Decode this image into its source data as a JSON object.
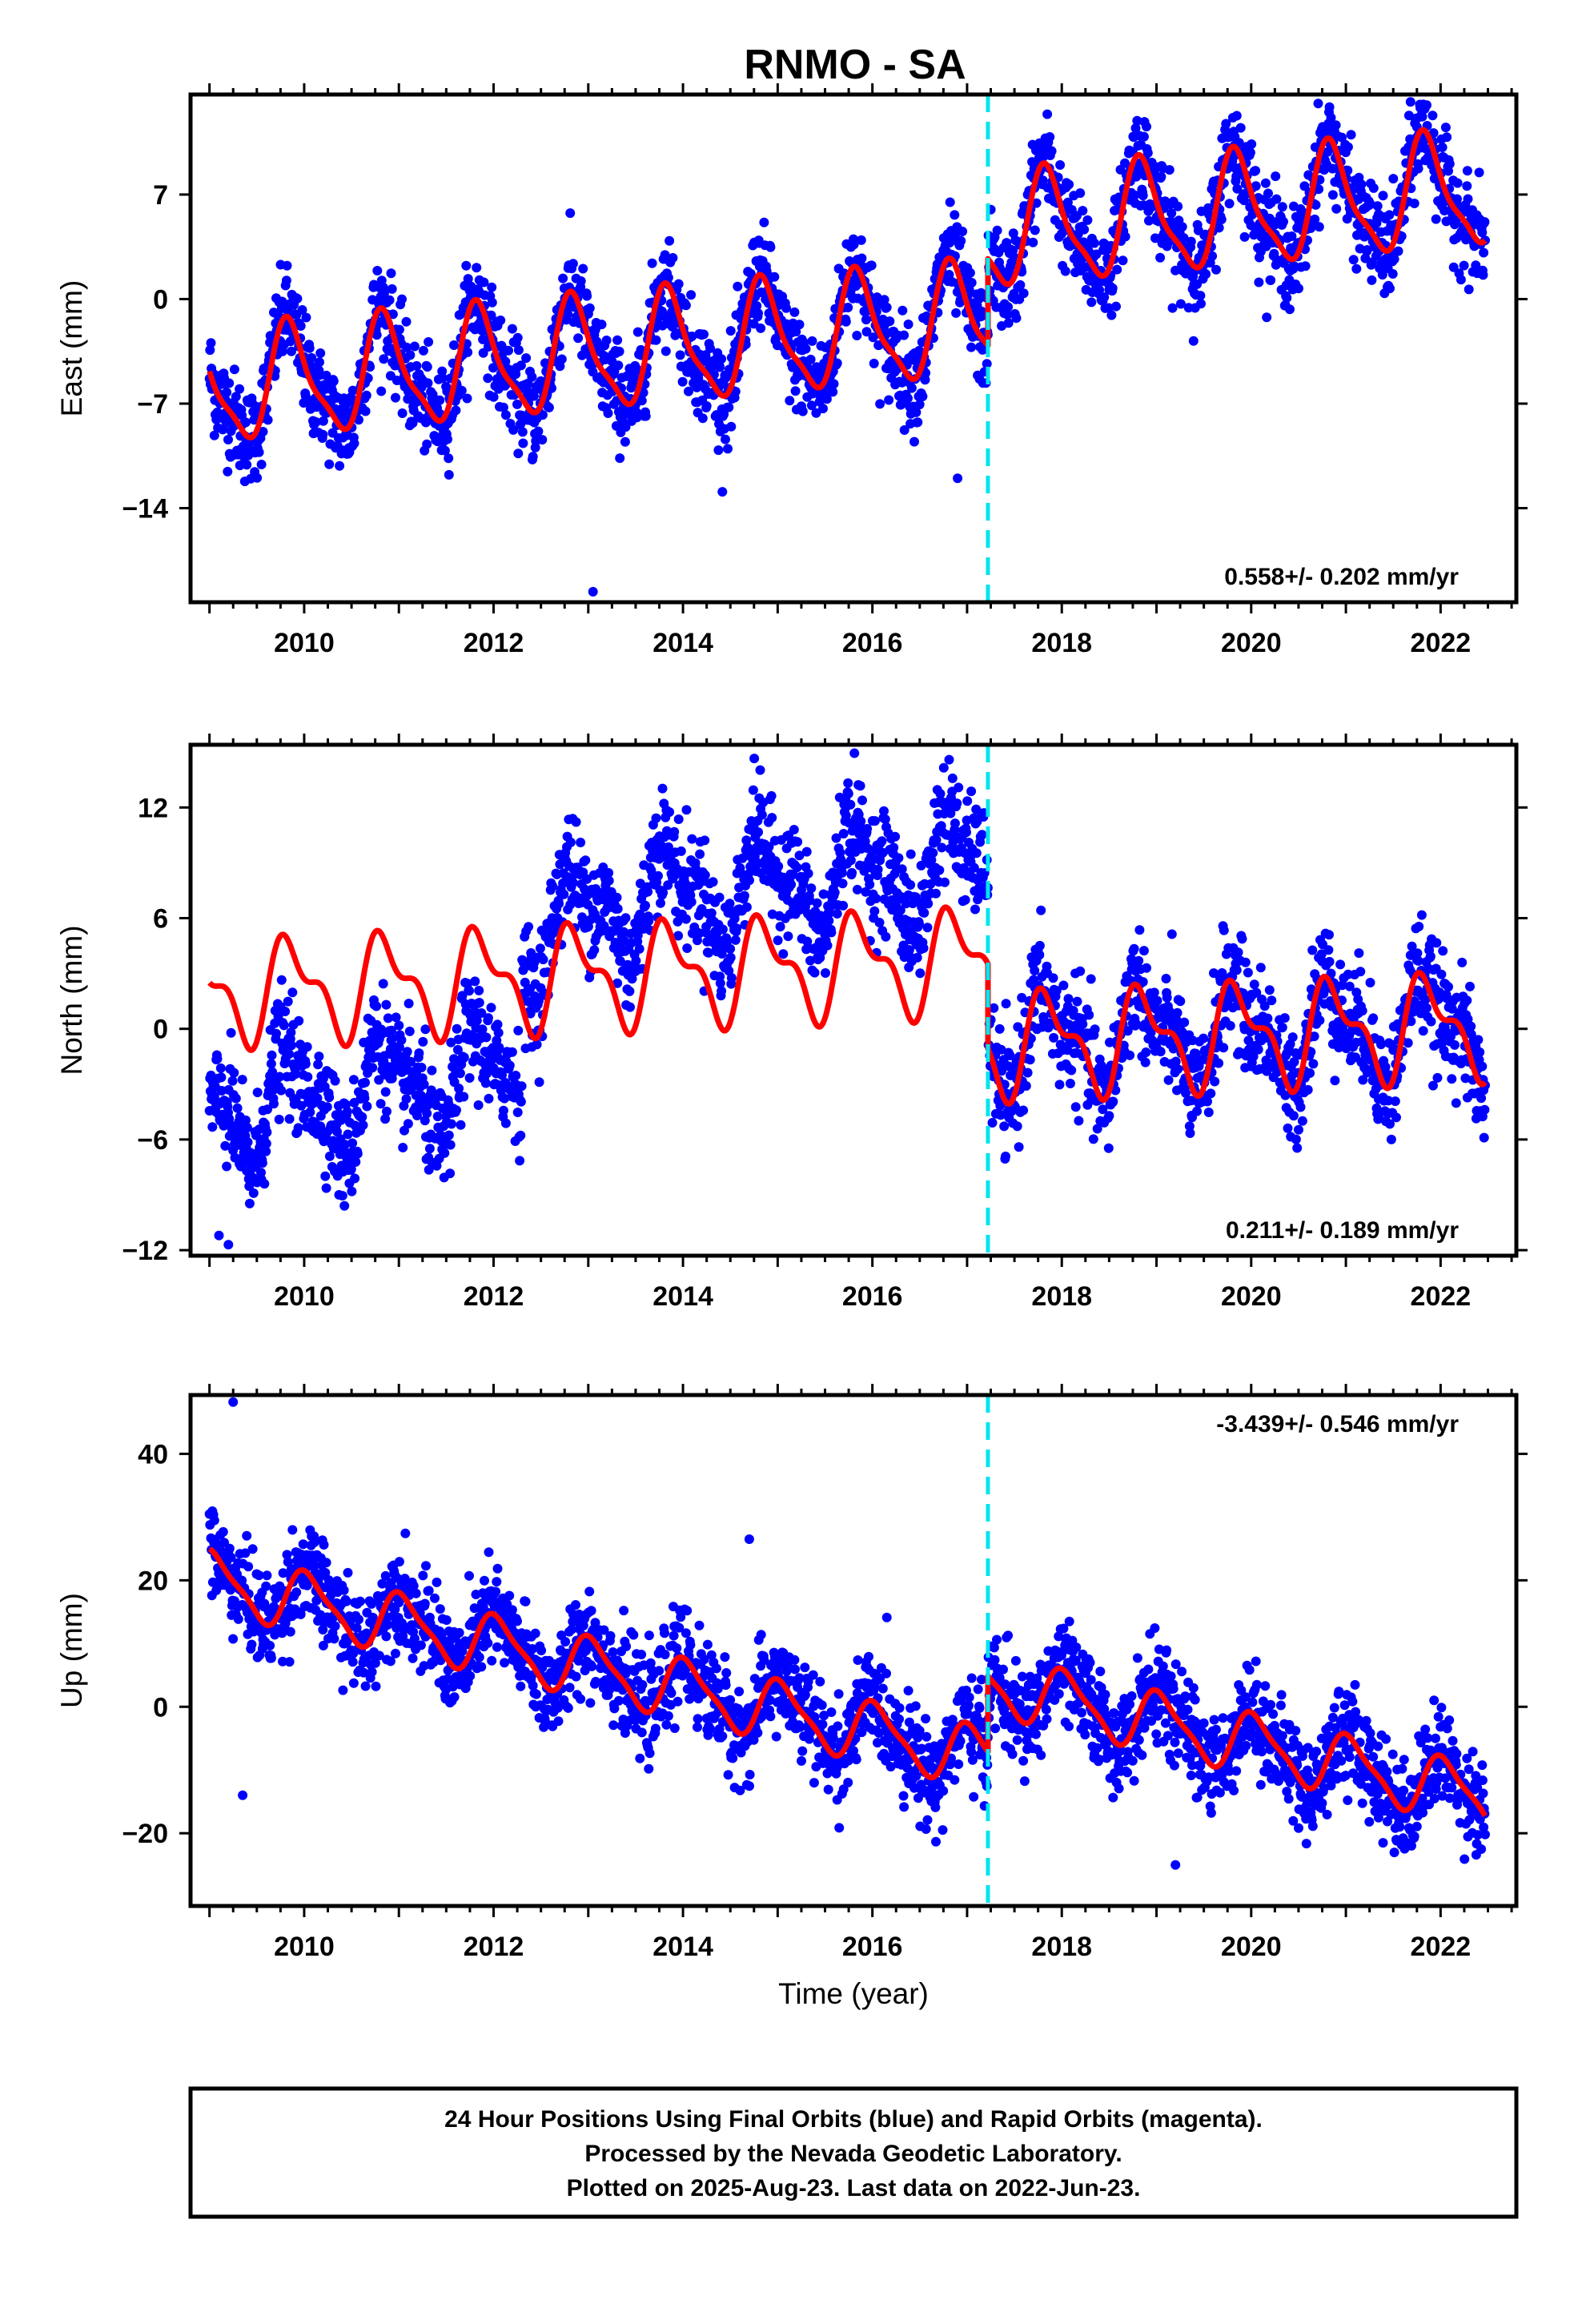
{
  "title": "RNMO - SA",
  "colors": {
    "points": "#0000ff",
    "model": "#ff0000",
    "offset_line": "#00e5ee",
    "frame": "#000000"
  },
  "offset_epoch": 2017.22,
  "x_range": [
    2008.8,
    2022.8
  ],
  "chart_data": [
    {
      "type": "scatter",
      "panel": "east",
      "ylabel": "East (mm)",
      "xlabel": "",
      "xlim": [
        2008.8,
        2022.8
      ],
      "ylim": [
        -20.3,
        13.7
      ],
      "yticks": [
        7,
        0,
        -7,
        -14
      ],
      "ytick_labels": [
        "7",
        "0",
        "-7",
        "-14"
      ],
      "xticks": [
        2010,
        2012,
        2014,
        2016,
        2018,
        2020,
        2022
      ],
      "xtick_labels": [
        "2010",
        "2012",
        "2014",
        "2016",
        "2018",
        "2020",
        "2022"
      ],
      "rate_text": "0.558+/- 0.202 mm/yr",
      "data_span": [
        2009.0,
        2022.47
      ],
      "model": {
        "rate": 0.558,
        "intercept_2009": -6.0,
        "offset_at_step": 5.8,
        "annual_amp": 3.6,
        "annual_phase": 0.6,
        "semiannual_amp": 1.0,
        "semiannual_phase": 0.15
      },
      "scatter_sigma": 1.6,
      "outliers": [
        [
          2013.05,
          -19.6
        ],
        [
          2016.9,
          -12.0
        ]
      ]
    },
    {
      "type": "scatter",
      "panel": "north",
      "ylabel": "North (mm)",
      "xlabel": "",
      "xlim": [
        2008.8,
        2022.8
      ],
      "ylim": [
        -12.3,
        15.4
      ],
      "yticks": [
        12,
        6,
        0,
        -6,
        -12
      ],
      "ytick_labels": [
        "12",
        "6",
        "0",
        "-6",
        "-12"
      ],
      "xticks": [
        2010,
        2012,
        2014,
        2016,
        2018,
        2020,
        2022
      ],
      "xtick_labels": [
        "2010",
        "2012",
        "2014",
        "2016",
        "2018",
        "2020",
        "2022"
      ],
      "rate_text": "0.211+/- 0.189 mm/yr",
      "data_span": [
        2009.0,
        2022.47
      ],
      "model": {
        "rate": 0.211,
        "intercept_2009": 2.0,
        "offset_at_step": -4.6,
        "annual_amp": 2.4,
        "annual_phase": 0.62,
        "semiannual_amp": 1.2,
        "semiannual_phase": 0.1
      },
      "scatter_sigma": 1.5,
      "outliers": [
        [
          2009.1,
          -11.2
        ],
        [
          2009.2,
          -11.7
        ]
      ]
    },
    {
      "type": "scatter",
      "panel": "up",
      "ylabel": "Up (mm)",
      "xlabel": "Time (year)",
      "xlim": [
        2008.8,
        2022.8
      ],
      "ylim": [
        -31.5,
        49.3
      ],
      "yticks": [
        40,
        20,
        0,
        -20
      ],
      "ytick_labels": [
        "40",
        "20",
        "0",
        "-20"
      ],
      "xticks": [
        2010,
        2012,
        2014,
        2016,
        2018,
        2020,
        2022
      ],
      "xtick_labels": [
        "2010",
        "2012",
        "2014",
        "2016",
        "2018",
        "2020",
        "2022"
      ],
      "rate_text": "-3.439+/- 0.546 mm/yr",
      "data_span": [
        2009.0,
        2022.47
      ],
      "model": {
        "rate": -3.439,
        "intercept_2009": 20.0,
        "offset_at_step": 12.0,
        "annual_amp": 4.5,
        "annual_phase": 0.8,
        "semiannual_amp": 1.2,
        "semiannual_phase": 0.3
      },
      "scatter_sigma": 3.8,
      "outliers": [
        [
          2009.25,
          48.2
        ],
        [
          2009.35,
          -14.0
        ],
        [
          2014.7,
          26.5
        ],
        [
          2019.2,
          -25.0
        ]
      ]
    }
  ],
  "footer": {
    "line1": "24 Hour Positions Using Final Orbits (blue) and Rapid Orbits (magenta).",
    "line2": "Processed by the Nevada Geodetic Laboratory.",
    "line3": "Plotted on 2025-Aug-23. Last data on 2022-Jun-23."
  }
}
